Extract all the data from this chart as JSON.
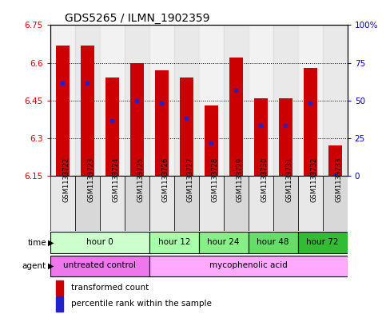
{
  "title": "GDS5265 / ILMN_1902359",
  "samples": [
    "GSM1133722",
    "GSM1133723",
    "GSM1133724",
    "GSM1133725",
    "GSM1133726",
    "GSM1133727",
    "GSM1133728",
    "GSM1133729",
    "GSM1133730",
    "GSM1133731",
    "GSM1133732",
    "GSM1133733"
  ],
  "bar_top": [
    6.67,
    6.67,
    6.54,
    6.6,
    6.57,
    6.54,
    6.43,
    6.62,
    6.46,
    6.46,
    6.58,
    6.27
  ],
  "bar_bottom": 6.15,
  "blue_dot_value": [
    6.52,
    6.52,
    6.37,
    6.45,
    6.44,
    6.38,
    6.28,
    6.49,
    6.35,
    6.35,
    6.44,
    6.15
  ],
  "ylim_left": [
    6.15,
    6.75
  ],
  "ylim_right": [
    0,
    100
  ],
  "yticks_left": [
    6.15,
    6.3,
    6.45,
    6.6,
    6.75
  ],
  "ytick_labels_left": [
    "6.15",
    "6.3",
    "6.45",
    "6.6",
    "6.75"
  ],
  "yticks_right": [
    0,
    25,
    50,
    75,
    100
  ],
  "ytick_labels_right": [
    "0",
    "25",
    "50",
    "75",
    "100%"
  ],
  "bar_color": "#cc0000",
  "dot_color": "#2222cc",
  "grid_color": "#000000",
  "col_bg_even": "#e8e8e8",
  "col_bg_odd": "#d8d8d8",
  "time_groups": [
    {
      "label": "hour 0",
      "start": 0,
      "end": 4,
      "color": "#ccffcc"
    },
    {
      "label": "hour 12",
      "start": 4,
      "end": 6,
      "color": "#aaffaa"
    },
    {
      "label": "hour 24",
      "start": 6,
      "end": 8,
      "color": "#88ee88"
    },
    {
      "label": "hour 48",
      "start": 8,
      "end": 10,
      "color": "#66dd66"
    },
    {
      "label": "hour 72",
      "start": 10,
      "end": 12,
      "color": "#33bb33"
    }
  ],
  "agent_groups": [
    {
      "label": "untreated control",
      "start": 0,
      "end": 4,
      "color": "#ee77ee"
    },
    {
      "label": "mycophenolic acid",
      "start": 4,
      "end": 12,
      "color": "#ffaaff"
    }
  ],
  "legend_items": [
    {
      "label": "transformed count",
      "color": "#cc0000"
    },
    {
      "label": "percentile rank within the sample",
      "color": "#2222cc"
    }
  ],
  "left_color": "#cc0000",
  "right_color": "#0000bb",
  "title_fontsize": 10,
  "tick_fs": 7.5,
  "sample_fs": 6,
  "annot_fs": 7.5,
  "bar_width": 0.55
}
